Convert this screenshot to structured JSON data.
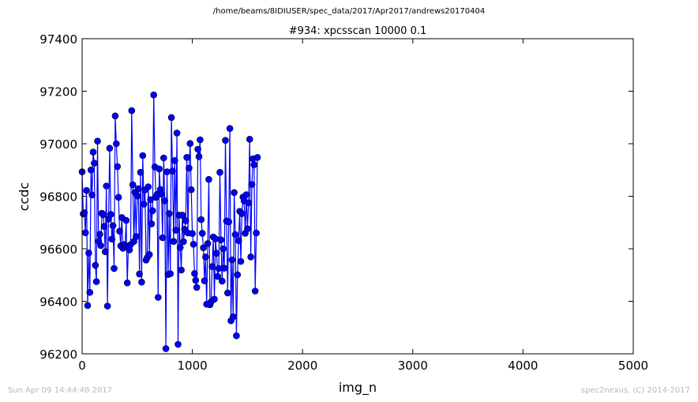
{
  "header": {
    "path": "/home/beams/8IDIUSER/spec_data/2017/Apr2017/andrews20170404"
  },
  "footer": {
    "timestamp": "Sun Apr 09 14:44:48 2017",
    "credit": "spec2nexus, (C) 2014-2017"
  },
  "chart_data": {
    "type": "line",
    "title": "#934: xpcsscan 10000 0.1",
    "xlabel": "img_n",
    "ylabel": "ccdc",
    "xlim": [
      0,
      5000
    ],
    "ylim": [
      96200,
      97400
    ],
    "xticks": [
      0,
      1000,
      2000,
      3000,
      4000,
      5000
    ],
    "yticks": [
      96200,
      96400,
      96600,
      96800,
      97000,
      97200,
      97400
    ],
    "grid": false,
    "markers": true,
    "colors": {
      "line": "#0000ff",
      "marker": "#0000ff",
      "marker_edge": "#000000"
    },
    "series": [
      {
        "x_start": 0,
        "x_step": 10,
        "y": [
          96893,
          96733,
          96737,
          96661,
          96822,
          96384,
          96584,
          96434,
          96900,
          96805,
          96968,
          96926,
          96537,
          96475,
          97010,
          96629,
          96655,
          96612,
          96735,
          96730,
          96685,
          96589,
          96839,
          96382,
          96713,
          96983,
          96731,
          96637,
          96688,
          96525,
          97106,
          97000,
          96913,
          96796,
          96667,
          96611,
          96719,
          96602,
          96616,
          96613,
          96708,
          96470,
          96607,
          96596,
          96616,
          97126,
          96844,
          96628,
          96815,
          96647,
          96801,
          96829,
          96504,
          96891,
          96473,
          96955,
          96770,
          96824,
          96557,
          96566,
          96836,
          96578,
          96787,
          96695,
          96745,
          97186,
          96912,
          96796,
          96807,
          96415,
          96904,
          96826,
          96808,
          96642,
          96946,
          96783,
          96220,
          96893,
          96502,
          96734,
          96505,
          97100,
          96896,
          96628,
          96936,
          96671,
          97041,
          96236,
          96728,
          96605,
          96519,
          96728,
          96627,
          96674,
          96707,
          96948,
          96660,
          96907,
          97001,
          96825,
          96658,
          96617,
          96506,
          96480,
          96453,
          96979,
          96951,
          97015,
          96711,
          96659,
          96604,
          96478,
          96569,
          96389,
          96620,
          96864,
          96387,
          96398,
          96532,
          96645,
          96408,
          96638,
          96583,
          96495,
          96525,
          96891,
          96634,
          96477,
          96600,
          96526,
          97013,
          96706,
          96432,
          96703,
          97058,
          96326,
          96558,
          96341,
          96814,
          96654,
          96269,
          96501,
          96631,
          96743,
          96552,
          96734,
          96797,
          96782,
          96659,
          96806,
          96676,
          96775,
          97017,
          96569,
          96845,
          96943,
          96920,
          96439,
          96660,
          96948
        ]
      }
    ]
  }
}
